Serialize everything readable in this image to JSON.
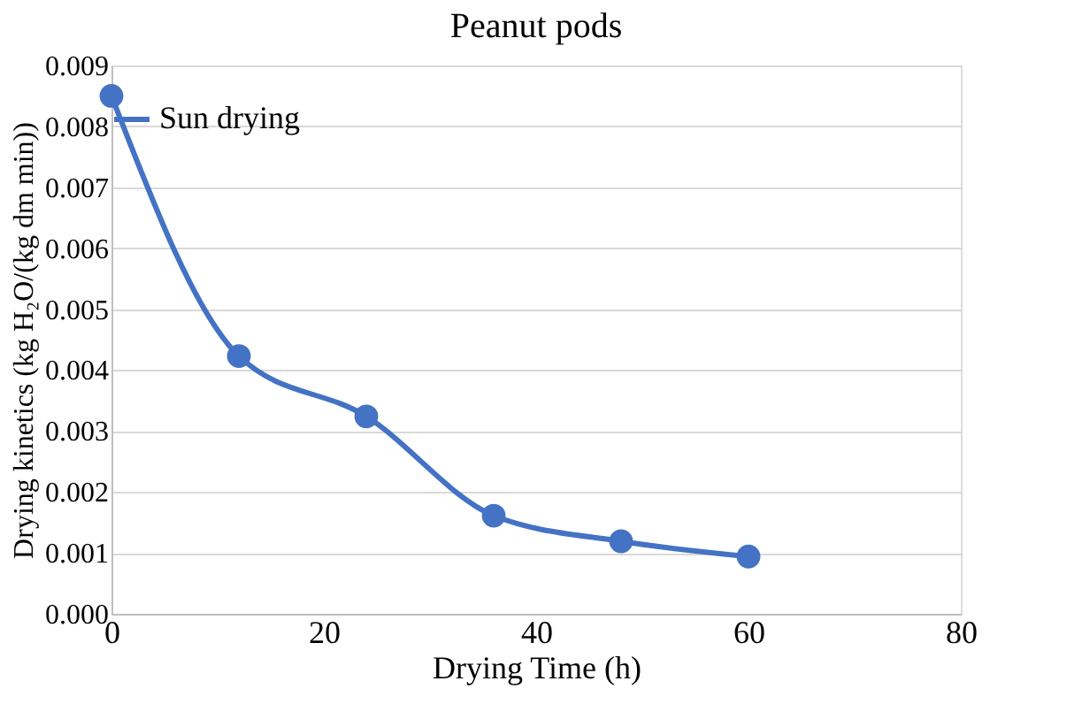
{
  "chart_data": {
    "type": "line",
    "title": "Peanut pods",
    "xlabel": "Drying Time (h)",
    "ylabel": "Drying kinetics (kg H₂O/(kg dm min))",
    "x": [
      0,
      12,
      24,
      36,
      48,
      60
    ],
    "series": [
      {
        "name": "Sun drying",
        "color": "#4472c4",
        "values": [
          0.0085,
          0.00423,
          0.00324,
          0.00161,
          0.00119,
          0.00094
        ]
      }
    ],
    "xlim": [
      0,
      80
    ],
    "xticks": [
      0,
      20,
      40,
      60,
      80
    ],
    "ylim": [
      0,
      0.009
    ],
    "yticks": [
      {
        "value": 0,
        "label": "0.000"
      },
      {
        "value": 0.001,
        "label": "0.001"
      },
      {
        "value": 0.002,
        "label": "0.002"
      },
      {
        "value": 0.003,
        "label": "0.003"
      },
      {
        "value": 0.004,
        "label": "0.004"
      },
      {
        "value": 0.005,
        "label": "0.005"
      },
      {
        "value": 0.006,
        "label": "0.006"
      },
      {
        "value": 0.007,
        "label": "0.007"
      },
      {
        "value": 0.008,
        "label": "0.008"
      },
      {
        "value": 0.009,
        "label": "0.009"
      }
    ],
    "grid": "y",
    "legend": "top",
    "marker": "circle",
    "line_style": "solid"
  }
}
